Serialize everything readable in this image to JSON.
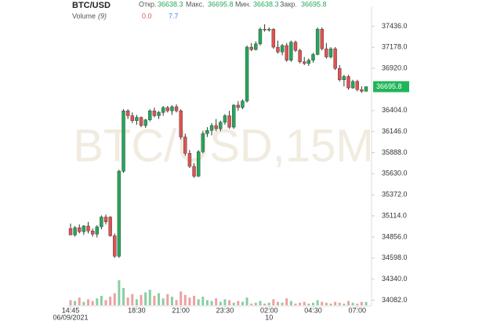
{
  "chart_data": {
    "type": "candlestick",
    "title": "BTC/USD",
    "watermark": "BTC/USD,15M",
    "header": {
      "open_label": "Откр.",
      "open": 36638.3,
      "high_label": "Макс.",
      "high": 36695.8,
      "low_label": "Мин.",
      "low": 36638.3,
      "close_label": "Закр.",
      "close": 36695.8,
      "volume_label": "Volume",
      "volume_period": "(9)",
      "volume_a": "0.0",
      "volume_b": "7.7"
    },
    "categories": [
      "14:45",
      null,
      null,
      null,
      null,
      null,
      null,
      null,
      null,
      null,
      null,
      null,
      null,
      null,
      null,
      "18:30",
      null,
      null,
      null,
      null,
      null,
      null,
      null,
      null,
      null,
      "21:00",
      null,
      null,
      null,
      null,
      null,
      null,
      null,
      null,
      null,
      "23:30",
      null,
      null,
      null,
      null,
      null,
      null,
      null,
      null,
      null,
      "02:00",
      null,
      null,
      null,
      null,
      null,
      null,
      null,
      null,
      null,
      "04:30",
      null,
      null,
      null,
      null,
      null,
      null,
      null,
      null,
      null,
      "07:00",
      null,
      null
    ],
    "date_categories": [
      "06/09/2021",
      null,
      null,
      null,
      null,
      null,
      null,
      null,
      null,
      null,
      null,
      null,
      null,
      null,
      null,
      null,
      null,
      null,
      null,
      null,
      null,
      null,
      null,
      null,
      null,
      null,
      null,
      null,
      null,
      null,
      null,
      null,
      null,
      null,
      null,
      null,
      null,
      null,
      null,
      null,
      null,
      null,
      null,
      null,
      null,
      "10",
      null,
      null,
      null,
      null,
      null,
      null,
      null,
      null,
      null,
      null,
      null,
      null,
      null,
      null,
      null,
      null,
      null,
      null,
      null,
      null,
      null,
      null
    ],
    "open": [
      34960,
      34880,
      34970,
      34920,
      34990,
      34930,
      34890,
      34980,
      35100,
      35100,
      34870,
      34620,
      35660,
      36400,
      36340,
      36280,
      36320,
      36220,
      36290,
      36400,
      36340,
      36380,
      36440,
      36400,
      36450,
      36400,
      36080,
      35880,
      35720,
      35600,
      35900,
      36120,
      36160,
      36220,
      36180,
      36260,
      36340,
      36200,
      36470,
      36440,
      36520,
      37180,
      37150,
      37220,
      37400,
      37390,
      37400,
      37180,
      37120,
      37200,
      37020,
      37240,
      37140,
      37000,
      36980,
      37020,
      37090,
      37400,
      37160,
      37060,
      37160,
      36920,
      36780,
      36820,
      36680,
      36760,
      36660,
      36638.3
    ],
    "high": [
      35020,
      34990,
      35010,
      35000,
      35040,
      34960,
      35000,
      35120,
      35130,
      35110,
      34900,
      35680,
      36420,
      36420,
      36380,
      36350,
      36330,
      36300,
      36420,
      36440,
      36400,
      36460,
      36460,
      36470,
      36480,
      36420,
      36120,
      35920,
      35760,
      35920,
      36150,
      36200,
      36250,
      36300,
      36280,
      36360,
      36400,
      36480,
      36520,
      36540,
      37200,
      37230,
      37250,
      37420,
      37460,
      37420,
      37410,
      37260,
      37220,
      37230,
      37260,
      37260,
      37160,
      37060,
      37040,
      37110,
      37420,
      37420,
      37230,
      37180,
      37180,
      36960,
      36840,
      36840,
      36780,
      36780,
      36700,
      36695.8
    ],
    "low": [
      34880,
      34860,
      34900,
      34880,
      34900,
      34860,
      34850,
      34950,
      35010,
      34860,
      34600,
      34600,
      35640,
      36300,
      36250,
      36230,
      36200,
      36190,
      36270,
      36320,
      36300,
      36340,
      36380,
      36350,
      36380,
      36050,
      35850,
      35700,
      35580,
      35590,
      35880,
      36080,
      36100,
      36150,
      36150,
      36230,
      36180,
      36180,
      36400,
      36420,
      36500,
      37130,
      37140,
      37200,
      37370,
      37370,
      37160,
      37100,
      37080,
      37000,
      37000,
      37120,
      36980,
      36960,
      36950,
      36990,
      37080,
      37140,
      37040,
      37040,
      36900,
      36760,
      36700,
      36660,
      36670,
      36640,
      36620,
      36638.3
    ],
    "close": [
      34880,
      34970,
      34920,
      34990,
      34930,
      34890,
      34980,
      35100,
      35040,
      34870,
      34620,
      35660,
      36400,
      36340,
      36280,
      36320,
      36220,
      36290,
      36400,
      36340,
      36380,
      36440,
      36400,
      36450,
      36400,
      36080,
      35880,
      35720,
      35600,
      35900,
      36120,
      36160,
      36220,
      36180,
      36260,
      36340,
      36200,
      36470,
      36440,
      36520,
      37180,
      37150,
      37220,
      37400,
      37390,
      37400,
      37180,
      37120,
      37200,
      37020,
      37240,
      37140,
      37000,
      36980,
      37020,
      37090,
      37400,
      37160,
      37060,
      37160,
      36920,
      36780,
      36820,
      36680,
      36760,
      36660,
      36640,
      36695.8
    ],
    "volume": [
      12,
      10,
      18,
      8,
      14,
      10,
      16,
      22,
      12,
      20,
      28,
      58,
      40,
      18,
      26,
      14,
      24,
      30,
      36,
      22,
      28,
      16,
      26,
      20,
      12,
      32,
      24,
      18,
      22,
      14,
      20,
      12,
      10,
      16,
      8,
      14,
      12,
      6,
      10,
      8,
      18,
      4,
      6,
      10,
      4,
      6,
      14,
      8,
      6,
      16,
      10,
      4,
      6,
      8,
      4,
      6,
      12,
      8,
      6,
      4,
      8,
      6,
      4,
      10,
      6,
      4,
      8,
      7.7
    ],
    "up_color": "#26a65b",
    "down_color": "#e05252",
    "volume_area_color": "#b9d3f0",
    "last_price_color": "#21b55a",
    "ylim": [
      34000,
      37680
    ],
    "yticks": [
      {
        "value": 34082,
        "label": "34082.0"
      },
      {
        "value": 34340,
        "label": "34340.0"
      },
      {
        "value": 34598,
        "label": "34598.0"
      },
      {
        "value": 34856,
        "label": "34856.0"
      },
      {
        "value": 35114,
        "label": "35114.0"
      },
      {
        "value": 35372,
        "label": "35372.0"
      },
      {
        "value": 35630,
        "label": "35630.0"
      },
      {
        "value": 35888,
        "label": "35888.0"
      },
      {
        "value": 36146,
        "label": "36146.0"
      },
      {
        "value": 36404,
        "label": "36404.0"
      },
      {
        "value": 36920,
        "label": "36920.0"
      },
      {
        "value": 37178,
        "label": "37178.0"
      },
      {
        "value": 37436,
        "label": "37436.0"
      }
    ]
  }
}
